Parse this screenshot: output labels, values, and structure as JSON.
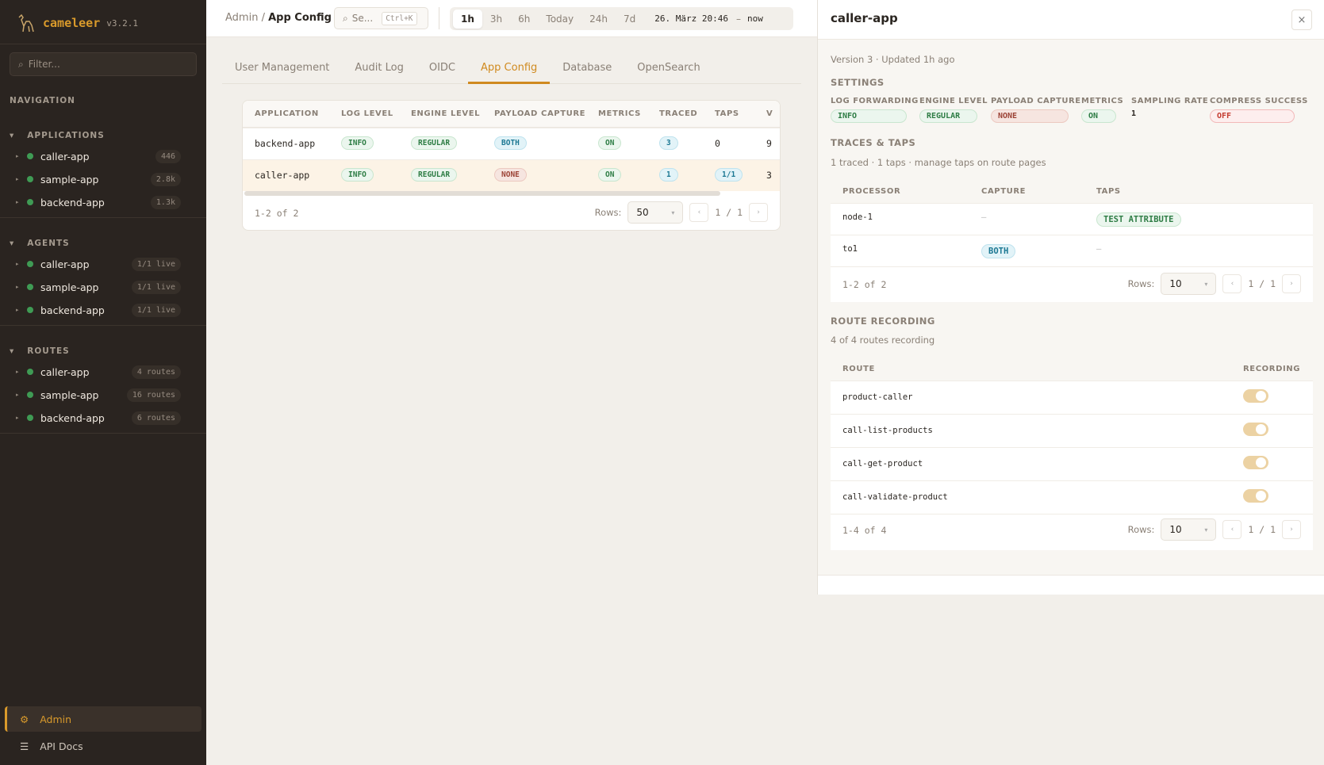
{
  "brand": {
    "name": "cameleer",
    "version": "v3.2.1"
  },
  "sidebar": {
    "filter_placeholder": "Filter...",
    "nav_label": "NAVIGATION",
    "groups": [
      {
        "label": "APPLICATIONS",
        "items": [
          {
            "label": "caller-app",
            "count": "446"
          },
          {
            "label": "sample-app",
            "count": "2.8k"
          },
          {
            "label": "backend-app",
            "count": "1.3k"
          }
        ]
      },
      {
        "label": "AGENTS",
        "items": [
          {
            "label": "caller-app",
            "count": "1/1 live"
          },
          {
            "label": "sample-app",
            "count": "1/1 live"
          },
          {
            "label": "backend-app",
            "count": "1/1 live"
          }
        ]
      },
      {
        "label": "ROUTES",
        "items": [
          {
            "label": "caller-app",
            "count": "4 routes"
          },
          {
            "label": "sample-app",
            "count": "16 routes"
          },
          {
            "label": "backend-app",
            "count": "6 routes"
          }
        ]
      }
    ],
    "admin": "Admin",
    "api_docs": "API Docs"
  },
  "header": {
    "crumb_parent": "Admin",
    "crumb_sep": "/",
    "crumb_current": "App Config",
    "search": "Se...",
    "search_kbd": "Ctrl+K",
    "ranges": [
      "1h",
      "3h",
      "6h",
      "Today",
      "24h",
      "7d"
    ],
    "active_range": "1h",
    "from": "26. März 20:46",
    "dash": "–",
    "to": "now"
  },
  "tabs": [
    "User Management",
    "Audit Log",
    "OIDC",
    "App Config",
    "Database",
    "OpenSearch"
  ],
  "active_tab": "App Config",
  "table": {
    "columns": [
      "APPLICATION",
      "LOG LEVEL",
      "ENGINE LEVEL",
      "PAYLOAD CAPTURE",
      "METRICS",
      "TRACED",
      "TAPS",
      "V"
    ],
    "rows": [
      {
        "app": "backend-app",
        "log": "INFO",
        "engine": "REGULAR",
        "payload": "BOTH",
        "metrics": "ON",
        "traced": "3",
        "taps": "0",
        "v": "9"
      },
      {
        "app": "caller-app",
        "log": "INFO",
        "engine": "REGULAR",
        "payload": "NONE",
        "metrics": "ON",
        "traced": "1",
        "taps": "1/1",
        "v": "3"
      }
    ],
    "range_text": "1-2 of 2",
    "rows_label": "Rows:",
    "rows_value": "50",
    "page": "1 / 1"
  },
  "panel": {
    "title": "caller-app",
    "close": "×",
    "meta": "Version 3 · Updated 1h ago",
    "settings_label": "SETTINGS",
    "settings": [
      {
        "label": "LOG FORWARDING",
        "value": "INFO"
      },
      {
        "label": "ENGINE LEVEL",
        "value": "REGULAR"
      },
      {
        "label": "PAYLOAD CAPTURE",
        "value": "NONE"
      },
      {
        "label": "METRICS",
        "value": "ON"
      },
      {
        "label": "SAMPLING RATE",
        "value": "1"
      },
      {
        "label": "COMPRESS SUCCESS",
        "value": "OFF"
      }
    ],
    "traces_label": "TRACES & TAPS",
    "traces_sub": "1 traced · 1 taps · manage taps on route pages",
    "traces_cols": [
      "PROCESSOR",
      "CAPTURE",
      "TAPS"
    ],
    "traces_rows": [
      {
        "processor": "node-1",
        "capture": "—",
        "taps": "TEST ATTRIBUTE"
      },
      {
        "processor": "to1",
        "capture": "BOTH",
        "taps": "—"
      }
    ],
    "traces_range": "1-2 of 2",
    "rows_label": "Rows:",
    "traces_rows_value": "10",
    "traces_page": "1 / 1",
    "routes_label": "ROUTE RECORDING",
    "routes_sub": "4 of 4 routes recording",
    "routes_cols": [
      "ROUTE",
      "RECORDING"
    ],
    "routes": [
      {
        "name": "product-caller",
        "recording": true
      },
      {
        "name": "call-list-products",
        "recording": true
      },
      {
        "name": "call-get-product",
        "recording": true
      },
      {
        "name": "call-validate-product",
        "recording": true
      }
    ],
    "routes_range": "1-4 of 4",
    "routes_rows_value": "10",
    "routes_page": "1 / 1"
  },
  "colors": {
    "accent": "#d08a1f",
    "sidebar": "#2a2420",
    "live": "#3f9b54"
  }
}
